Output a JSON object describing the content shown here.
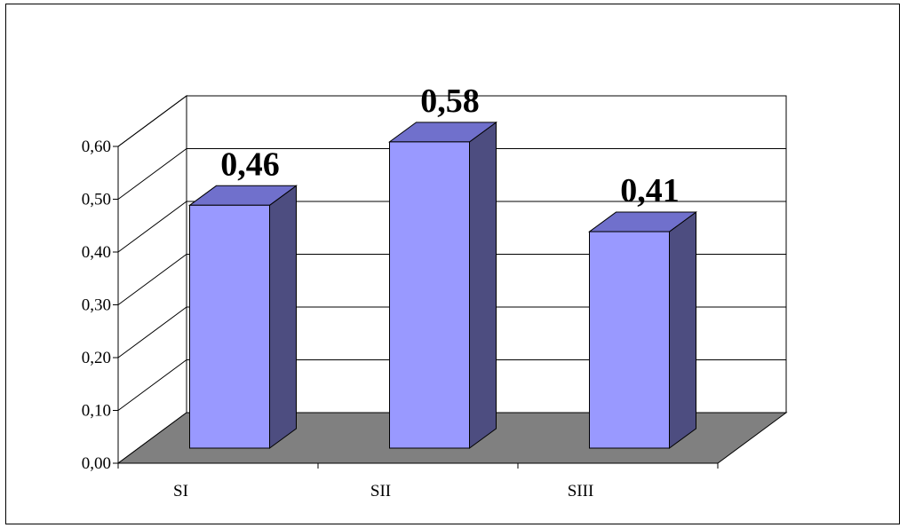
{
  "chart_data": {
    "type": "bar",
    "categories": [
      "SI",
      "SII",
      "SIII"
    ],
    "values": [
      0.46,
      0.58,
      0.41
    ],
    "data_labels": [
      "0,46",
      "0,58",
      "0,41"
    ],
    "ylim": [
      0,
      0.6
    ],
    "yticks": [
      "0,00",
      "0,10",
      "0,20",
      "0,30",
      "0,40",
      "0,50",
      "0,60"
    ],
    "title": "",
    "xlabel": "",
    "ylabel": "",
    "grid": true,
    "legend": "none",
    "style": "3d-column",
    "colors": {
      "bar_front": "#9999FF",
      "bar_top": "#7070CC",
      "bar_side": "#4D4D80",
      "floor": "#808080",
      "wall": "#FFFFFF",
      "grid": "#000000"
    }
  }
}
